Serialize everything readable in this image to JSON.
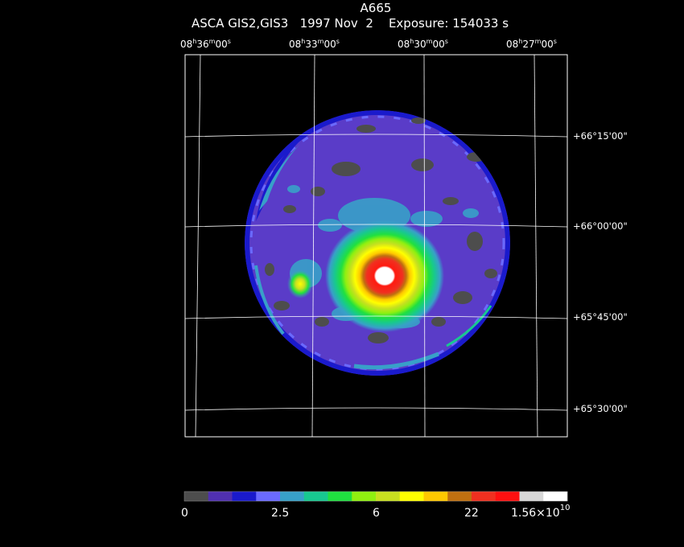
{
  "header": {
    "title": "A665",
    "subtitle": "ASCA GIS2,GIS3   1997 Nov  2    Exposure: 154033 s"
  },
  "ra_ticks": [
    {
      "h": "08",
      "m": "36",
      "s": "00"
    },
    {
      "h": "08",
      "m": "33",
      "s": "00"
    },
    {
      "h": "08",
      "m": "30",
      "s": "00"
    },
    {
      "h": "08",
      "m": "27",
      "s": "00"
    }
  ],
  "dec_ticks": [
    "+66°15'00\"",
    "+66°00'00\"",
    "+65°45'00\"",
    "+65°30'00\""
  ],
  "colorbar": {
    "colors": [
      "#4d4d4d",
      "#5030b0",
      "#1a1acc",
      "#6a6aff",
      "#38a0c8",
      "#18c890",
      "#20e040",
      "#90f010",
      "#c8e020",
      "#ffff00",
      "#ffc800",
      "#c07010",
      "#f03020",
      "#ff1010",
      "#d8d8d8",
      "#ffffff"
    ],
    "labels": [
      {
        "text": "0"
      },
      {
        "text": "2.5"
      },
      {
        "text": "6"
      },
      {
        "text": "22"
      },
      {
        "text": "1.56×10",
        "exp": "10"
      }
    ]
  }
}
